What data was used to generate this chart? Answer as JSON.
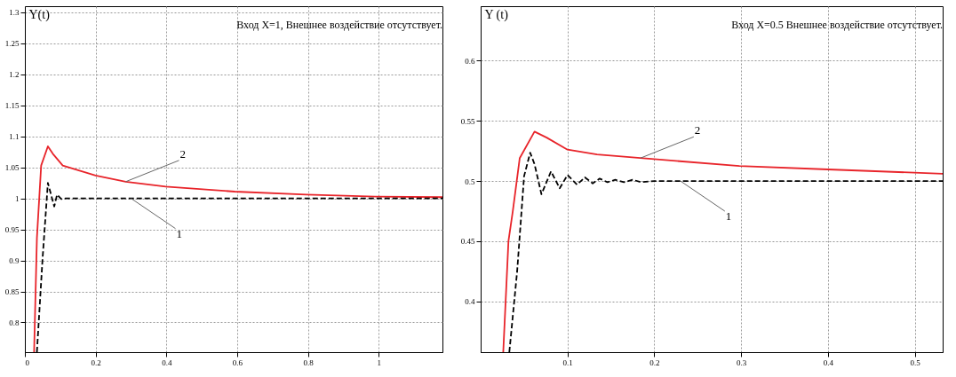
{
  "chart_data": [
    {
      "type": "line",
      "title": "Вход X=1, Внешнее воздействие отсутствует.",
      "ylabel": "Y(t)",
      "xlim": [
        0,
        1.18
      ],
      "xticks": [
        0,
        0.2,
        0.4,
        0.6,
        0.8,
        1
      ],
      "ylim": [
        0.752,
        1.31
      ],
      "yticks": [
        0.8,
        0.85,
        0.9,
        0.95,
        1,
        1.05,
        1.1,
        1.15,
        1.2,
        1.25,
        1.3
      ],
      "grid": true,
      "marker": "none",
      "series": [
        {
          "color": "#e8242a",
          "line_style": "solid",
          "x": [
            0.026,
            0.034,
            0.046,
            0.065,
            0.079,
            0.107,
            0.2,
            0.285,
            0.398,
            0.593,
            0.795,
            0.99,
            1.18
          ],
          "values": [
            0.752,
            0.936,
            1.053,
            1.084,
            1.072,
            1.053,
            1.037,
            1.027,
            1.019,
            1.011,
            1.006,
            1.003,
            1.002
          ]
        },
        {
          "color": "#000000",
          "line_style": "dashed",
          "x": [
            0.034,
            0.05,
            0.065,
            0.074,
            0.083,
            0.091,
            0.103,
            0.115,
            0.3,
            0.6,
            0.9,
            1.18
          ],
          "values": [
            0.752,
            0.903,
            1.025,
            1.006,
            0.987,
            1.006,
            0.999,
            1.0,
            1.0,
            1.0,
            1.0,
            1.0
          ]
        }
      ],
      "annotations": [
        {
          "text": "2",
          "x": 0.285,
          "y": 1.027
        },
        {
          "text": "1",
          "x": 0.3,
          "y": 1.0
        }
      ]
    },
    {
      "type": "line",
      "title": "Вход X=0.5 Внешнее воздействие отсутствует.",
      "ylabel": "Y (t)",
      "xlim": [
        0,
        0.532
      ],
      "xticks": [
        0.1,
        0.2,
        0.3,
        0.4,
        0.5
      ],
      "ylim": [
        0.358,
        0.645
      ],
      "yticks": [
        0.4,
        0.45,
        0.5,
        0.55,
        0.6
      ],
      "grid": true,
      "marker": "none",
      "series": [
        {
          "color": "#e8242a",
          "line_style": "solid",
          "x": [
            0.026,
            0.032,
            0.037,
            0.045,
            0.062,
            0.076,
            0.1,
            0.134,
            0.184,
            0.298,
            0.4,
            0.532
          ],
          "values": [
            0.358,
            0.45,
            0.475,
            0.519,
            0.541,
            0.536,
            0.526,
            0.522,
            0.519,
            0.5125,
            0.5096,
            0.506
          ]
        },
        {
          "color": "#000000",
          "line_style": "dashed",
          "x": [
            0.033,
            0.042,
            0.05,
            0.057,
            0.062,
            0.07,
            0.081,
            0.091,
            0.1,
            0.111,
            0.12,
            0.129,
            0.137,
            0.146,
            0.155,
            0.165,
            0.175,
            0.185,
            0.2,
            0.23,
            0.3,
            0.4,
            0.532
          ],
          "values": [
            0.358,
            0.425,
            0.504,
            0.5235,
            0.514,
            0.489,
            0.508,
            0.494,
            0.505,
            0.497,
            0.503,
            0.498,
            0.502,
            0.499,
            0.501,
            0.499,
            0.501,
            0.499,
            0.5,
            0.5,
            0.5,
            0.5,
            0.5
          ]
        }
      ],
      "annotations": [
        {
          "text": "2",
          "x": 0.184,
          "y": 0.519
        },
        {
          "text": "1",
          "x": 0.23,
          "y": 0.5
        }
      ]
    }
  ]
}
